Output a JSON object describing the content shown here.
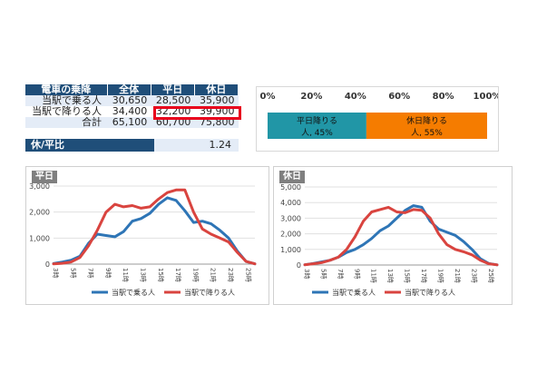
{
  "table": {
    "headers": [
      "電車の乗降",
      "全体",
      "平日",
      "休日"
    ],
    "rows": [
      [
        "当駅で乗る人",
        "30,650",
        "28,500",
        "35,900"
      ],
      [
        "当駅で降りる人",
        "34,400",
        "32,200",
        "39,900"
      ],
      [
        "合計",
        "65,100",
        "60,700",
        "75,800"
      ]
    ],
    "ratio_label": "休/平比",
    "ratio_value": "1.24"
  },
  "chart_data": [
    {
      "type": "bar",
      "stacked": true,
      "orientation": "horizontal",
      "x_ticks": [
        "0%",
        "20%",
        "40%",
        "60%",
        "80%",
        "100%"
      ],
      "xlim": [
        0,
        100
      ],
      "segments": [
        {
          "label_line1": "平日降りる",
          "label_line2": "人, 45%",
          "value": 45,
          "color": "#2196a6"
        },
        {
          "label_line1": "休日降りる",
          "label_line2": "人, 55%",
          "value": 55,
          "color": "#f57c00"
        }
      ]
    },
    {
      "type": "line",
      "title": "平日",
      "ylim": [
        0,
        3000
      ],
      "y_ticks": [
        "0",
        "1,000",
        "2,000",
        "3,000"
      ],
      "y_tick_values": [
        0,
        1000,
        2000,
        3000
      ],
      "x_labels": [
        "3時",
        "5時",
        "7時",
        "9時",
        "11時",
        "13時",
        "15時",
        "17時",
        "19時",
        "21時",
        "23時",
        "25時"
      ],
      "x": [
        3,
        4,
        5,
        6,
        7,
        8,
        9,
        10,
        11,
        12,
        13,
        14,
        15,
        16,
        17,
        18,
        19,
        20,
        21,
        22,
        23,
        24,
        25,
        26
      ],
      "series": [
        {
          "name": "当駅で乗る人",
          "color": "#2e75b6",
          "values": [
            20,
            80,
            150,
            300,
            800,
            1150,
            1100,
            1050,
            1250,
            1650,
            1750,
            1950,
            2300,
            2550,
            2450,
            2050,
            1600,
            1650,
            1550,
            1300,
            1000,
            500,
            100,
            10
          ]
        },
        {
          "name": "当駅で降りる人",
          "color": "#d9443f",
          "values": [
            10,
            30,
            80,
            250,
            700,
            1300,
            2000,
            2300,
            2200,
            2250,
            2150,
            2200,
            2500,
            2750,
            2850,
            2850,
            2000,
            1350,
            1150,
            1000,
            850,
            450,
            100,
            10
          ]
        }
      ]
    },
    {
      "type": "line",
      "title": "休日",
      "ylim": [
        0,
        5000
      ],
      "y_ticks": [
        "0",
        "1,000",
        "2,000",
        "3,000",
        "4,000",
        "5,000"
      ],
      "y_tick_values": [
        0,
        1000,
        2000,
        3000,
        4000,
        5000
      ],
      "x_labels": [
        "3時",
        "5時",
        "7時",
        "9時",
        "11時",
        "13時",
        "15時",
        "17時",
        "19時",
        "21時",
        "23時",
        "25時"
      ],
      "x": [
        3,
        4,
        5,
        6,
        7,
        8,
        9,
        10,
        11,
        12,
        13,
        14,
        15,
        16,
        17,
        18,
        19,
        20,
        21,
        22,
        23,
        24,
        25,
        26
      ],
      "series": [
        {
          "name": "当駅で乗る人",
          "color": "#2e75b6",
          "values": [
            20,
            100,
            200,
            300,
            500,
            800,
            1000,
            1300,
            1700,
            2200,
            2500,
            3000,
            3500,
            3800,
            3700,
            2800,
            2300,
            2100,
            1900,
            1500,
            1000,
            400,
            100,
            10
          ]
        },
        {
          "name": "当駅で降りる人",
          "color": "#d9443f",
          "values": [
            20,
            80,
            150,
            300,
            500,
            1000,
            1800,
            2800,
            3400,
            3550,
            3700,
            3400,
            3350,
            3550,
            3500,
            3000,
            2000,
            1300,
            1000,
            850,
            650,
            300,
            80,
            10
          ]
        }
      ]
    }
  ]
}
